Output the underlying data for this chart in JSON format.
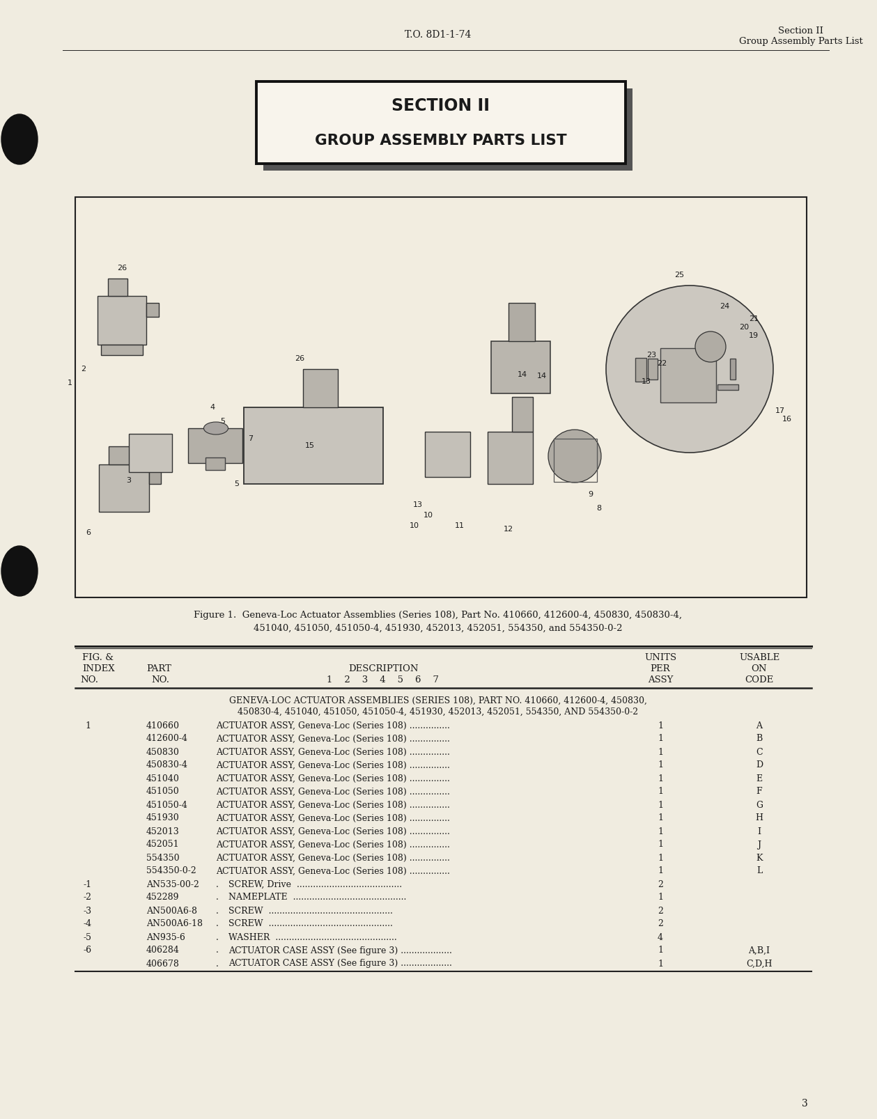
{
  "page_bg": "#f0ece0",
  "header_to": "T.O. 8D1-1-74",
  "header_section": "Section II",
  "header_subsection": "Group Assembly Parts List",
  "section_title_line1": "SECTION II",
  "section_title_line2": "GROUP ASSEMBLY PARTS LIST",
  "figure_caption_line1": "Figure 1.  Geneva-Loc Actuator Assemblies (Series 108), Part No. 410660, 412600-4, 450830, 450830-4,",
  "figure_caption_line2": "451040, 451050, 451050-4, 451930, 452013, 452051, 554350, and 554350-0-2",
  "assembly_header_line1": "GENEVA-LOC ACTUATOR ASSEMBLIES (SERIES 108), PART NO. 410660, 412600-4, 450830,",
  "assembly_header_line2": "450830-4, 451040, 451050, 451050-4, 451930, 452013, 452051, 554350, AND 554350-0-2",
  "table_rows": [
    {
      "fig": "1",
      "part": "410660",
      "dot": false,
      "description": "ACTUATOR ASSY, Geneva-Loc (Series 108) ...............",
      "units": "1",
      "code": "A"
    },
    {
      "fig": "",
      "part": "412600-4",
      "dot": false,
      "description": "ACTUATOR ASSY, Geneva-Loc (Series 108) ...............",
      "units": "1",
      "code": "B"
    },
    {
      "fig": "",
      "part": "450830",
      "dot": false,
      "description": "ACTUATOR ASSY, Geneva-Loc (Series 108) ...............",
      "units": "1",
      "code": "C"
    },
    {
      "fig": "",
      "part": "450830-4",
      "dot": false,
      "description": "ACTUATOR ASSY, Geneva-Loc (Series 108) ...............",
      "units": "1",
      "code": "D"
    },
    {
      "fig": "",
      "part": "451040",
      "dot": false,
      "description": "ACTUATOR ASSY, Geneva-Loc (Series 108) ...............",
      "units": "1",
      "code": "E"
    },
    {
      "fig": "",
      "part": "451050",
      "dot": false,
      "description": "ACTUATOR ASSY, Geneva-Loc (Series 108) ...............",
      "units": "1",
      "code": "F"
    },
    {
      "fig": "",
      "part": "451050-4",
      "dot": false,
      "description": "ACTUATOR ASSY, Geneva-Loc (Series 108) ...............",
      "units": "1",
      "code": "G"
    },
    {
      "fig": "",
      "part": "451930",
      "dot": false,
      "description": "ACTUATOR ASSY, Geneva-Loc (Series 108) ...............",
      "units": "1",
      "code": "H"
    },
    {
      "fig": "",
      "part": "452013",
      "dot": false,
      "description": "ACTUATOR ASSY, Geneva-Loc (Series 108) ...............",
      "units": "1",
      "code": "I"
    },
    {
      "fig": "",
      "part": "452051",
      "dot": false,
      "description": "ACTUATOR ASSY, Geneva-Loc (Series 108) ...............",
      "units": "1",
      "code": "J"
    },
    {
      "fig": "",
      "part": "554350",
      "dot": false,
      "description": "ACTUATOR ASSY, Geneva-Loc (Series 108) ...............",
      "units": "1",
      "code": "K"
    },
    {
      "fig": "",
      "part": "554350-0-2",
      "dot": false,
      "description": "ACTUATOR ASSY, Geneva-Loc (Series 108) ...............",
      "units": "1",
      "code": "L"
    },
    {
      "fig": "-1",
      "part": "AN535-00-2",
      "dot": true,
      "description": "SCREW, Drive  .......................................",
      "units": "2",
      "code": ""
    },
    {
      "fig": "-2",
      "part": "452289",
      "dot": true,
      "description": "NAMEPLATE  ..........................................",
      "units": "1",
      "code": ""
    },
    {
      "fig": "-3",
      "part": "AN500A6-8",
      "dot": true,
      "description": "SCREW  ..............................................",
      "units": "2",
      "code": ""
    },
    {
      "fig": "-4",
      "part": "AN500A6-18",
      "dot": true,
      "description": "SCREW  ..............................................",
      "units": "2",
      "code": ""
    },
    {
      "fig": "-5",
      "part": "AN935-6",
      "dot": true,
      "description": "WASHER  .............................................",
      "units": "4",
      "code": ""
    },
    {
      "fig": "-6",
      "part": "406284",
      "dot": true,
      "description": "ACTUATOR CASE ASSY (See figure 3) ...................",
      "units": "1",
      "code": "A,B,I"
    },
    {
      "fig": "",
      "part": "406678",
      "dot": true,
      "description": "ACTUATOR CASE ASSY (See figure 3) ...................",
      "units": "1",
      "code": "C,D,H"
    }
  ],
  "page_number": "3",
  "text_color": "#1a1a1a",
  "line_color": "#222222",
  "fig_box_color": "#f2ede0",
  "title_box_face": "#f8f4ec",
  "title_shadow_color": "#555555"
}
